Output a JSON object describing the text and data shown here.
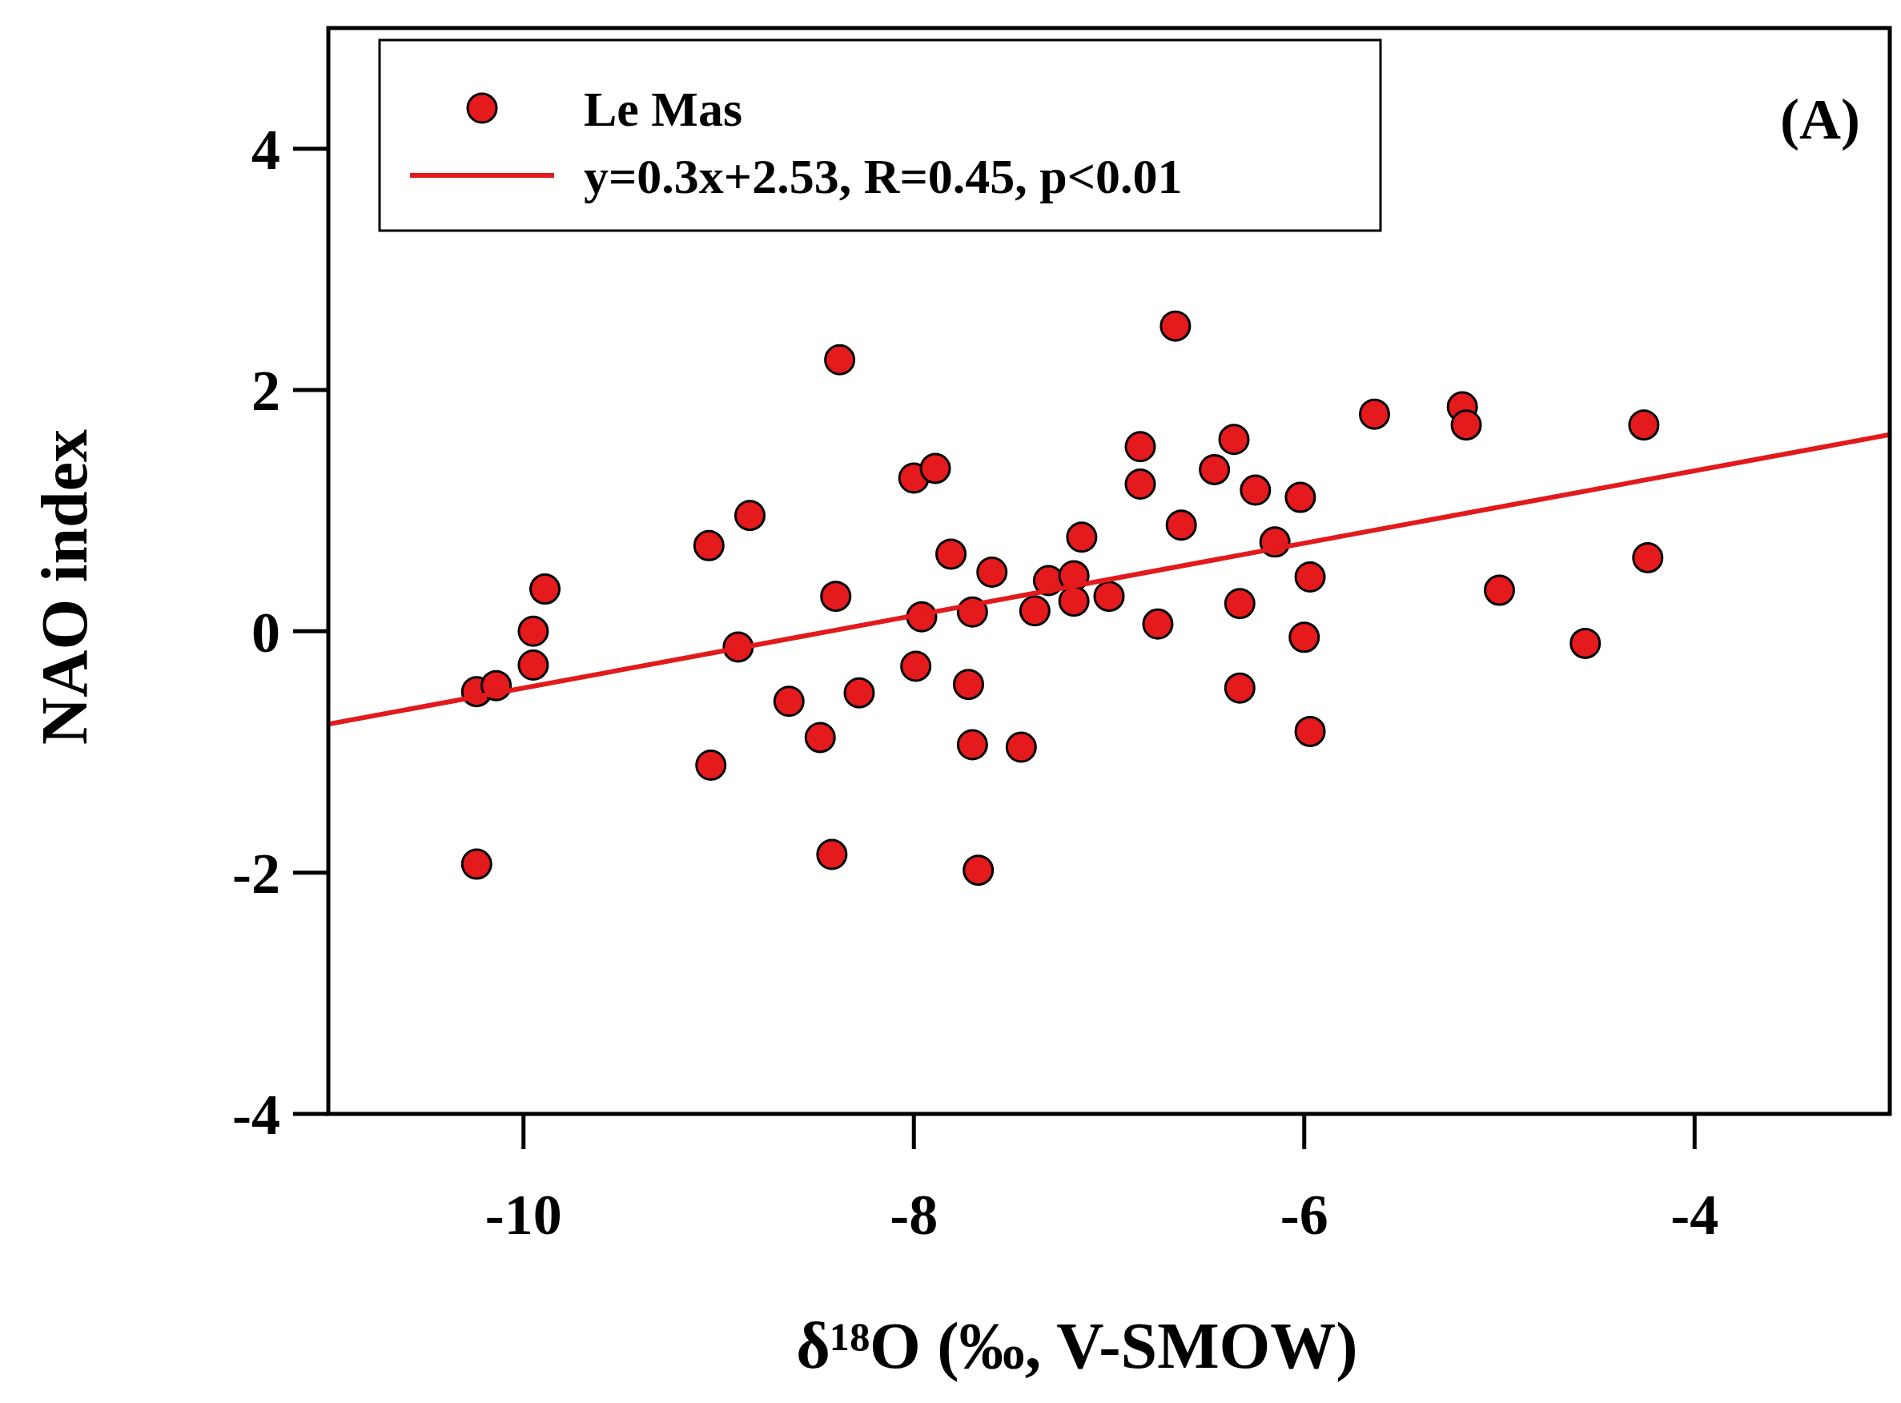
{
  "chart_data": {
    "type": "scatter",
    "xlabel": "δ¹⁸O (‰, V-SMOW)",
    "ylabel": "NAO index",
    "annotations": [
      "(A)"
    ],
    "xlim": [
      -11,
      -3
    ],
    "ylim": [
      -4,
      5
    ],
    "xticks": [
      -10,
      -8,
      -6,
      -4
    ],
    "yticks": [
      -4,
      -2,
      0,
      2,
      4
    ],
    "grid": false,
    "legend": "top left",
    "series": [
      {
        "name": "Le Mas",
        "color": "#e41a1c",
        "marker": "circle",
        "x": [
          -10.24,
          -10.24,
          -10.14,
          -9.95,
          -9.95,
          -9.89,
          -9.05,
          -9.04,
          -8.9,
          -8.84,
          -8.64,
          -8.48,
          -8.4,
          -8.38,
          -8.42,
          -8.28,
          -8,
          -7.89,
          -7.99,
          -7.96,
          -7.81,
          -7.7,
          -7.72,
          -7.7,
          -7.67,
          -7.6,
          -7.45,
          -7.38,
          -7.31,
          -7.18,
          -7.18,
          -7.14,
          -7,
          -6.84,
          -6.84,
          -6.75,
          -6.66,
          -6.63,
          -6.46,
          -6.36,
          -6.33,
          -6.33,
          -6.25,
          -6.15,
          -6.02,
          -6,
          -5.97,
          -5.97,
          -5.64,
          -5.19,
          -5.17,
          -5,
          -4.56,
          -4.26,
          -4.24
        ],
        "values": [
          -1.93,
          -0.5,
          -0.45,
          0,
          -0.28,
          0.35,
          0.71,
          -1.11,
          -0.13,
          0.96,
          -0.58,
          -0.88,
          0.29,
          2.25,
          -1.85,
          -0.51,
          1.27,
          1.35,
          -0.29,
          0.12,
          0.64,
          0.16,
          -0.44,
          -0.94,
          -1.98,
          0.49,
          -0.96,
          0.17,
          0.42,
          0.46,
          0.25,
          0.78,
          0.29,
          1.53,
          1.22,
          0.06,
          2.53,
          0.88,
          1.34,
          1.59,
          0.23,
          -0.47,
          1.17,
          0.74,
          1.11,
          -0.05,
          0.45,
          -0.83,
          1.8,
          1.86,
          1.71,
          0.34,
          -0.1,
          1.71,
          0.61
        ]
      },
      {
        "name": "y=0.3x+2.53, R=0.45, p<0.01",
        "color": "#e31a1c",
        "type": "line",
        "marker": "none",
        "line_style": "solid",
        "x": [
          -11,
          -3
        ],
        "values": [
          -0.77,
          1.63
        ]
      }
    ]
  }
}
